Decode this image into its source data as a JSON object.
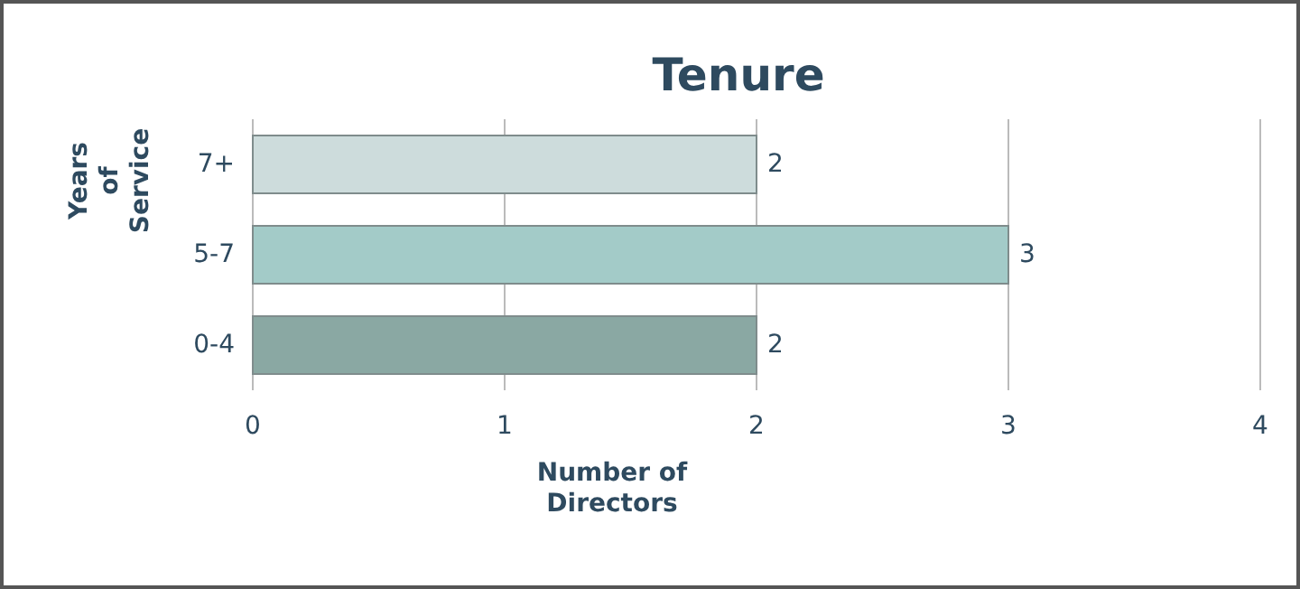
{
  "chart_data": {
    "type": "bar",
    "orientation": "horizontal",
    "title": "Tenure",
    "xlabel": "Number of Directors",
    "ylabel": "Years of Service",
    "categories": [
      "7+",
      "5-7",
      "0-4"
    ],
    "values": [
      2,
      3,
      2
    ],
    "colors": [
      "#cddcdc",
      "#a3cbc8",
      "#8aa8a3"
    ],
    "xlim": [
      0,
      4
    ],
    "xticks": [
      0,
      1,
      2,
      3,
      4
    ],
    "grid": "x",
    "data_labels": true
  }
}
